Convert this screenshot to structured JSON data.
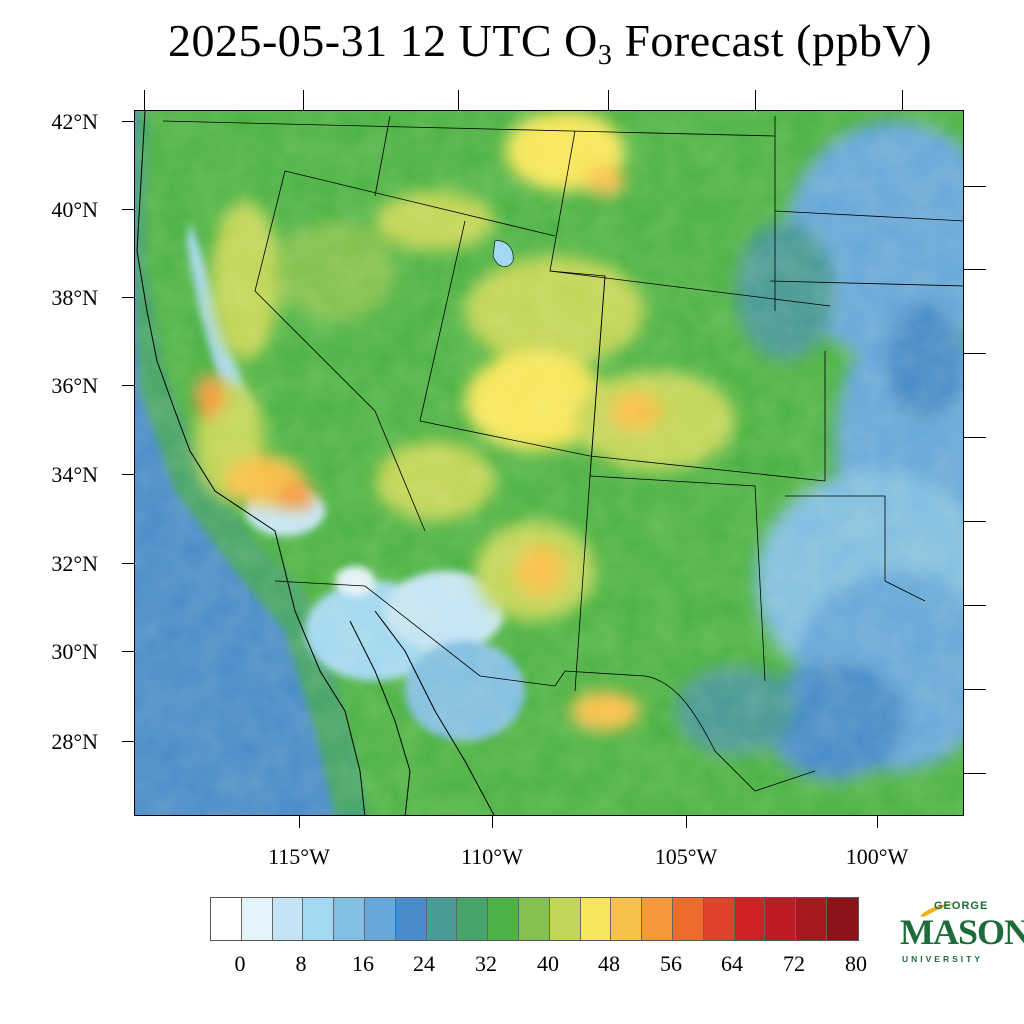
{
  "title": {
    "date": "2025-05-31",
    "hour": "12 UTC",
    "species_main": "O",
    "species_sub": "3",
    "rest": "Forecast (ppbV)"
  },
  "map": {
    "lat_labels": [
      "42°N",
      "40°N",
      "38°N",
      "36°N",
      "34°N",
      "32°N",
      "30°N",
      "28°N"
    ],
    "lon_labels": [
      "115°W",
      "110°W",
      "105°W",
      "100°W"
    ]
  },
  "colorbar": {
    "labels": [
      "0",
      "8",
      "16",
      "24",
      "32",
      "40",
      "48",
      "56",
      "64",
      "72",
      "80"
    ],
    "colors": [
      "#ffffff",
      "#e4f2fa",
      "#c4e4f6",
      "#a3d8f2",
      "#82bfe2",
      "#67a8db",
      "#4a8ccb",
      "#4a9a96",
      "#46a46a",
      "#4db346",
      "#82c14f",
      "#c2d558",
      "#f7e65c",
      "#f8c04c",
      "#f6973b",
      "#ef6b2d",
      "#e0432a",
      "#d02127",
      "#be1c24",
      "#a8181f",
      "#8b1419"
    ]
  },
  "logo": {
    "line1": "GEORGE",
    "line2": "MASON",
    "line3": "UNIVERSITY",
    "primary_color": "#1d6b3a",
    "accent_color": "#f2b21b"
  }
}
